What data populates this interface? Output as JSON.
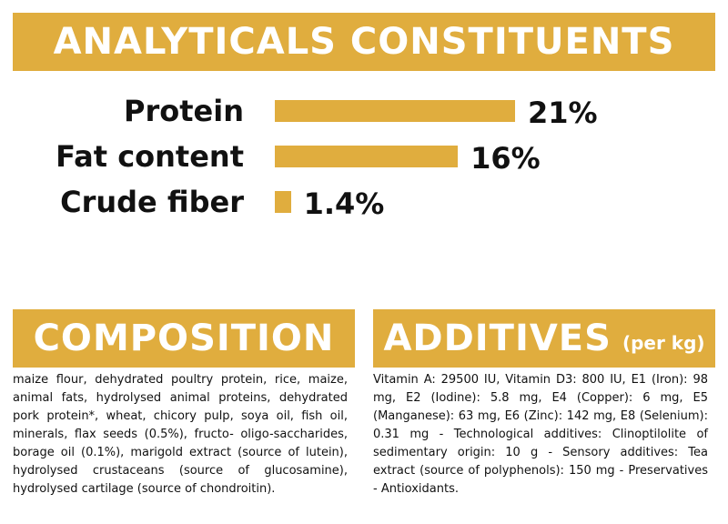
{
  "chart_data": {
    "type": "bar",
    "orientation": "horizontal",
    "title": "ANALYTICALS CONSTITUENTS",
    "categories": [
      "Protein",
      "Fat content",
      "Crude fiber"
    ],
    "values": [
      21,
      16,
      1.4
    ],
    "value_labels": [
      "21%",
      "16%",
      "1.4%"
    ],
    "color": "#e0ad3e"
  },
  "composition": {
    "title": "COMPOSITION",
    "text": "maize flour, dehydrated poultry protein, rice, maize, animal fats, hydrolysed animal proteins, dehydrated pork protein*, wheat, chicory pulp, soya oil, fish oil, minerals, flax seeds (0.5%), fructo- oligo-saccharides, borage oil (0.1%), marigold extract (source of lutein), hydrolysed crustaceans (source of glucosamine), hydrolysed cartilage (source of chondroitin)."
  },
  "additives": {
    "title": "ADDITIVES",
    "title_note": "(per kg)",
    "text": "Vitamin A: 29500 IU, Vitamin D3: 800 IU, E1 (Iron): 98 mg, E2 (Iodine): 5.8 mg, E4 (Copper): 6 mg, E5 (Manganese): 63 mg, E6 (Zinc): 142 mg, E8 (Selenium): 0.31 mg - Technological additives: Clinoptilolite of sedimentary origin: 10 g - Sensory additives: Tea extract (source of polyphenols): 150 mg - Preservatives - Antioxidants."
  }
}
